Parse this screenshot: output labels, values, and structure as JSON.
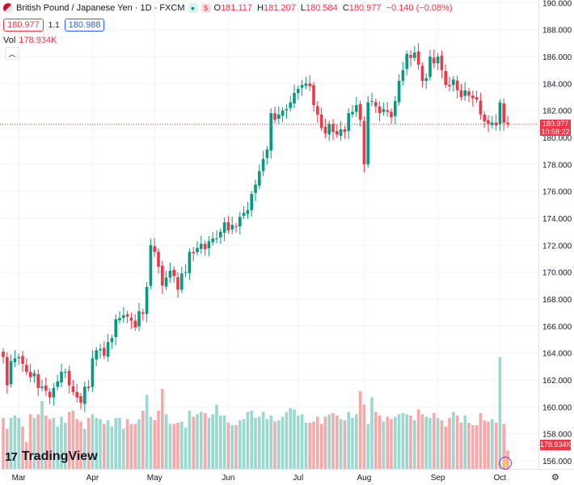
{
  "header": {
    "symbol_icon": "gbp-jpy-flag-icon",
    "title": "British Pound / Japanese Yen · 1D · FXCM",
    "green_dot": "●",
    "red_dot": "$",
    "ohlc": {
      "o_label": "O",
      "o": "181.117",
      "h_label": "H",
      "h": "181.207",
      "l_label": "L",
      "l": "180.584",
      "c_label": "C",
      "c": "180.977",
      "change": "−0.140 (−0.08%)"
    },
    "sell_price": "180.977",
    "spread": "1.1",
    "buy_price": "180.988",
    "volume_label": "Vol",
    "volume_value": "178.934K",
    "collapse_icon": "chevron-up-icon"
  },
  "price_label": {
    "price": "180.977",
    "countdown": "10:58:22"
  },
  "volume_tag": "178.934K",
  "branding": {
    "logo_mark": "17",
    "logo_text": "TradingView"
  },
  "icons": {
    "bolt": "lightning-icon",
    "gear": "settings-icon"
  },
  "chart_data": {
    "type": "candlestick",
    "title": "British Pound / Japanese Yen · 1D · FXCM",
    "y_ticks": [
      "156.000",
      "158.000",
      "160.000",
      "162.000",
      "164.000",
      "166.000",
      "168.000",
      "170.000",
      "172.000",
      "174.000",
      "176.000",
      "178.000",
      "180.000",
      "182.000",
      "184.000",
      "186.000",
      "188.000",
      "190.000"
    ],
    "ylim": [
      155.4,
      190.2
    ],
    "x_ticks": [
      {
        "label": "Mar",
        "index": 4
      },
      {
        "label": "Apr",
        "index": 23
      },
      {
        "label": "May",
        "index": 39
      },
      {
        "label": "Jun",
        "index": 58
      },
      {
        "label": "Jul",
        "index": 76
      },
      {
        "label": "Aug",
        "index": 93
      },
      {
        "label": "Sep",
        "index": 112
      },
      {
        "label": "Oct",
        "index": 128
      }
    ],
    "current_price": 180.977,
    "colors": {
      "up": "#089981",
      "down": "#f23645",
      "vol_up": "#9bd8cf",
      "vol_down": "#f7a9a9"
    },
    "closes": [
      163.7,
      161.6,
      163.4,
      163.6,
      163.7,
      163.2,
      162.6,
      162.2,
      162.5,
      161.4,
      161.5,
      161.2,
      160.7,
      161.4,
      161.9,
      162.6,
      162.6,
      161.6,
      161.1,
      160.7,
      160.3,
      161.5,
      161.4,
      163.6,
      164.2,
      164.3,
      163.8,
      164.8,
      165.1,
      166.5,
      166.6,
      166.8,
      166.7,
      166.4,
      165.9,
      167.1,
      166.9,
      168.9,
      172.0,
      171.5,
      170.4,
      169.0,
      169.6,
      170.1,
      169.7,
      168.7,
      169.9,
      170.0,
      171.5,
      171.4,
      171.8,
      172.1,
      171.7,
      172.3,
      172.5,
      172.5,
      173.0,
      173.7,
      173.1,
      173.5,
      173.4,
      174.1,
      174.4,
      174.6,
      175.8,
      176.5,
      177.5,
      178.4,
      179.1,
      181.8,
      181.3,
      181.7,
      182.0,
      182.1,
      182.6,
      183.3,
      183.6,
      183.9,
      184.0,
      183.8,
      182.4,
      181.7,
      180.7,
      180.3,
      181.0,
      180.4,
      180.2,
      180.6,
      180.4,
      181.8,
      181.9,
      182.4,
      181.3,
      178.0,
      182.6,
      182.7,
      182.3,
      181.8,
      182.1,
      181.9,
      181.5,
      182.7,
      184.2,
      185.0,
      186.2,
      185.9,
      186.3,
      185.4,
      184.2,
      184.4,
      186.0,
      185.5,
      186.0,
      185.0,
      183.9,
      183.8,
      184.3,
      183.5,
      183.0,
      183.5,
      183.1,
      182.9,
      182.8,
      181.7,
      181.2,
      181.0,
      181.1,
      180.9,
      182.6,
      181.1,
      180.977
    ],
    "volumes": [
      0.42,
      0.33,
      0.42,
      0.44,
      0.42,
      0.35,
      0.22,
      0.45,
      0.42,
      0.45,
      0.56,
      0.44,
      0.41,
      0.42,
      0.35,
      0.43,
      0.38,
      0.47,
      0.48,
      0.41,
      0.39,
      0.33,
      0.42,
      0.45,
      0.42,
      0.41,
      0.37,
      0.4,
      0.35,
      0.42,
      0.42,
      0.33,
      0.41,
      0.37,
      0.37,
      0.41,
      0.48,
      0.61,
      0.43,
      0.4,
      0.48,
      0.66,
      0.45,
      0.37,
      0.37,
      0.38,
      0.39,
      0.34,
      0.48,
      0.43,
      0.45,
      0.47,
      0.46,
      0.42,
      0.45,
      0.53,
      0.44,
      0.44,
      0.38,
      0.36,
      0.36,
      0.4,
      0.41,
      0.47,
      0.48,
      0.42,
      0.43,
      0.47,
      0.41,
      0.44,
      0.39,
      0.4,
      0.43,
      0.47,
      0.5,
      0.49,
      0.44,
      0.45,
      0.38,
      0.38,
      0.39,
      0.43,
      0.37,
      0.43,
      0.45,
      0.46,
      0.44,
      0.41,
      0.4,
      0.47,
      0.42,
      0.45,
      0.64,
      0.53,
      0.37,
      0.59,
      0.47,
      0.44,
      0.39,
      0.43,
      0.41,
      0.43,
      0.45,
      0.46,
      0.45,
      0.44,
      0.4,
      0.49,
      0.45,
      0.43,
      0.42,
      0.46,
      0.42,
      0.4,
      0.35,
      0.42,
      0.47,
      0.44,
      0.38,
      0.44,
      0.38,
      0.36,
      0.36,
      0.46,
      0.4,
      0.39,
      0.41,
      0.38,
      0.92,
      0.37,
      0.15
    ]
  }
}
